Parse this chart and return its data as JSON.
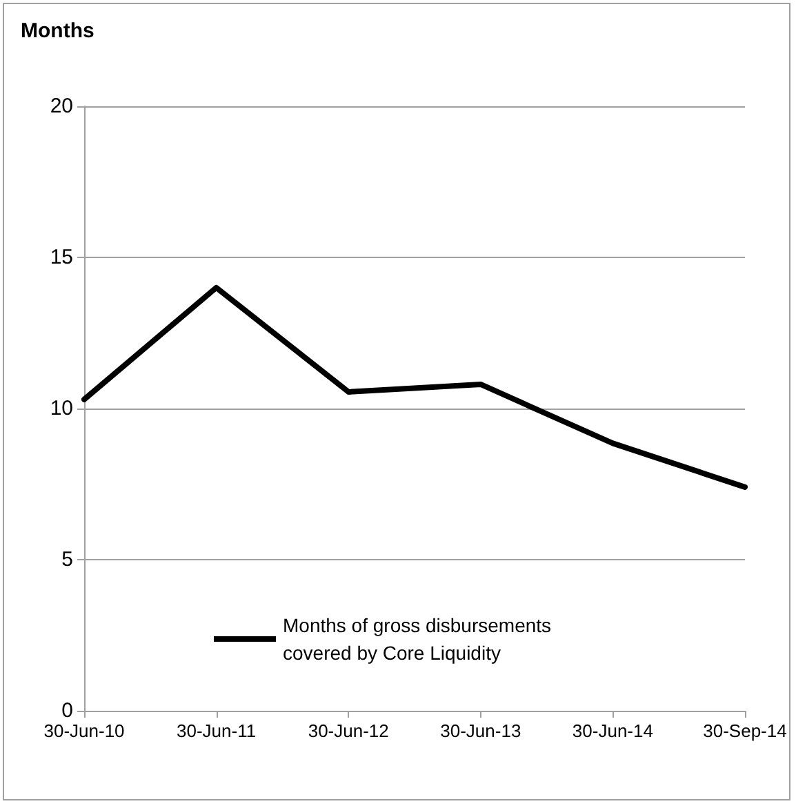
{
  "chart_data": {
    "type": "line",
    "title": "Months",
    "categories": [
      "30-Jun-10",
      "30-Jun-11",
      "30-Jun-12",
      "30-Jun-13",
      "30-Jun-14",
      "30-Sep-14"
    ],
    "series": [
      {
        "name": "Months of gross disbursements\ncovered by Core Liquidity",
        "color": "#000000",
        "values": [
          10.3,
          14.0,
          10.55,
          10.8,
          8.85,
          7.4
        ]
      }
    ],
    "ylim": [
      0,
      20
    ],
    "yticks": [
      0,
      5,
      10,
      15,
      20
    ],
    "grid": "y",
    "legend": "bottom",
    "marker": "none",
    "line_style": "solid"
  }
}
